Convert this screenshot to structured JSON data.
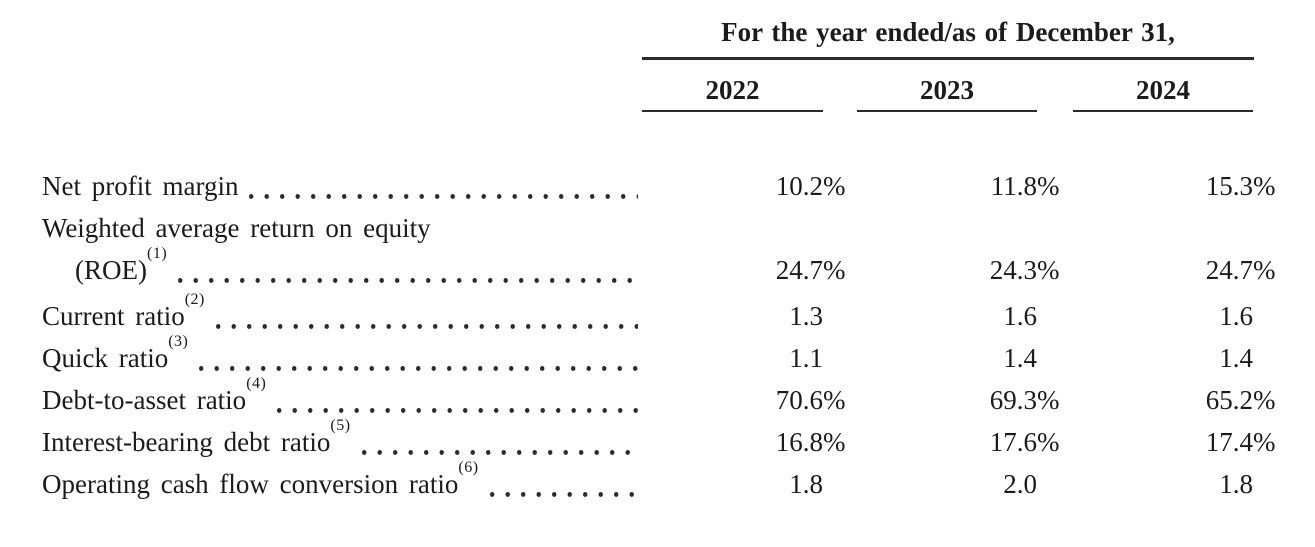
{
  "document": {
    "background": "#ffffff",
    "text_color": "#1b1b1b",
    "rule_color": "#2b2b2b"
  },
  "table": {
    "header": {
      "spanner": "For the year ended/as of December 31,",
      "columns": [
        "2022",
        "2023",
        "2024"
      ]
    },
    "lines": [
      {
        "label": "Net profit margin",
        "sup": null,
        "indent": false,
        "leader": true,
        "gap_above": false,
        "values": [
          "10.2%",
          "11.8%",
          "15.3%"
        ]
      },
      {
        "label": "Weighted average return on equity",
        "sup": null,
        "indent": false,
        "leader": false,
        "gap_above": false,
        "values": null
      },
      {
        "label": "(ROE)",
        "sup": "(1)",
        "indent": true,
        "leader": true,
        "gap_above": false,
        "values": [
          "24.7%",
          "24.3%",
          "24.7%"
        ]
      },
      {
        "label": "Current ratio",
        "sup": "(2)",
        "indent": false,
        "leader": true,
        "gap_above": true,
        "values": [
          "1.3",
          "1.6",
          "1.6"
        ]
      },
      {
        "label": "Quick ratio",
        "sup": "(3)",
        "indent": false,
        "leader": true,
        "gap_above": false,
        "values": [
          "1.1",
          "1.4",
          "1.4"
        ]
      },
      {
        "label": "Debt-to-asset ratio",
        "sup": "(4)",
        "indent": false,
        "leader": true,
        "gap_above": false,
        "values": [
          "70.6%",
          "69.3%",
          "65.2%"
        ]
      },
      {
        "label": "Interest-bearing debt ratio",
        "sup": "(5)",
        "indent": false,
        "leader": true,
        "gap_above": false,
        "values": [
          "16.8%",
          "17.6%",
          "17.4%"
        ]
      },
      {
        "label": "Operating cash flow conversion ratio",
        "sup": "(6)",
        "indent": false,
        "leader": true,
        "gap_above": false,
        "values": [
          "1.8",
          "2.0",
          "1.8"
        ]
      }
    ]
  }
}
